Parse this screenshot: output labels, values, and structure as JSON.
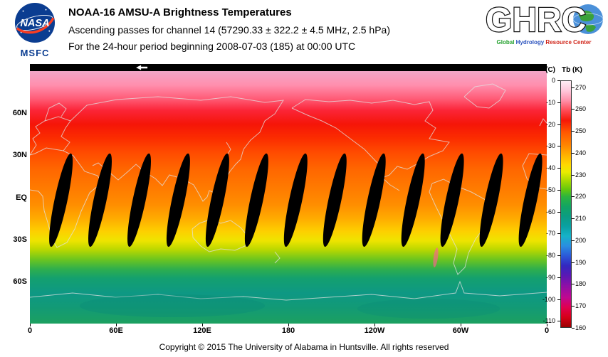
{
  "header": {
    "title": "NOAA-16 AMSU-A Brightness Temperatures",
    "subtitle_channel": "Ascending passes for channel 14 (57290.33 ± 322.2 ± 4.5 MHz, 2.5 hPa)",
    "subtitle_period": "For the 24-hour period beginning 2008-07-03 (185) at 00:00 UTC",
    "nasa_wordmark": "NASA",
    "nasa_center": "MSFC",
    "ghrc_acronym": "GHRC",
    "ghrc_tagline": [
      {
        "text": "Global",
        "color": "#22a02c"
      },
      {
        "text": "Hydrology",
        "color": "#2a52be"
      },
      {
        "text": "Resource",
        "color": "#d02418"
      },
      {
        "text": "Center",
        "color": "#d02418"
      }
    ]
  },
  "footer": {
    "copyright": "Copyright © 2015 The University of Alabama in Huntsville. All rights reserved"
  },
  "chart_data": {
    "type": "heatmap",
    "title": "NOAA-16 AMSU-A Brightness Temperatures, ascending passes, channel 14 (2.5 hPa)",
    "date": "2008-07-03 (day 185), 24-hour period beginning 00:00 UTC",
    "projection": "equirectangular world map, 0E at left edge, 180 at center, 0 (360) at right edge",
    "lon_ticks": [
      {
        "label": "0",
        "lon": 0
      },
      {
        "label": "60E",
        "lon": 60
      },
      {
        "label": "120E",
        "lon": 120
      },
      {
        "label": "180",
        "lon": 180
      },
      {
        "label": "120W",
        "lon": 240
      },
      {
        "label": "60W",
        "lon": 300
      },
      {
        "label": "0",
        "lon": 360
      }
    ],
    "lat_ticks": [
      {
        "label": "60N",
        "lat": 60
      },
      {
        "label": "30N",
        "lat": 30
      },
      {
        "label": "EQ",
        "lat": 0
      },
      {
        "label": "30S",
        "lat": -30
      },
      {
        "label": "60S",
        "lat": -60
      }
    ],
    "colorbar": {
      "unit_left": "(C)",
      "unit_right": "Tb  (K)",
      "celsius_ticks": [
        0,
        -10,
        -20,
        -30,
        -40,
        -50,
        -60,
        -70,
        -80,
        -90,
        -100,
        -110
      ],
      "kelvin_ticks": [
        270,
        260,
        250,
        240,
        230,
        220,
        210,
        200,
        190,
        180,
        170,
        160
      ],
      "kelvin_range": [
        273.15,
        160
      ],
      "stops": [
        {
          "f": 0.0,
          "c": "#ffeef5"
        },
        {
          "f": 0.04,
          "c": "#ffc6da"
        },
        {
          "f": 0.08,
          "c": "#ff8fa8"
        },
        {
          "f": 0.12,
          "c": "#ff4a55"
        },
        {
          "f": 0.16,
          "c": "#f51808"
        },
        {
          "f": 0.21,
          "c": "#ff5a00"
        },
        {
          "f": 0.26,
          "c": "#ff8400"
        },
        {
          "f": 0.3,
          "c": "#ffb000"
        },
        {
          "f": 0.34,
          "c": "#ffd800"
        },
        {
          "f": 0.37,
          "c": "#eaec00"
        },
        {
          "f": 0.4,
          "c": "#b2dc00"
        },
        {
          "f": 0.44,
          "c": "#66c80c"
        },
        {
          "f": 0.47,
          "c": "#2cb43e"
        },
        {
          "f": 0.51,
          "c": "#12a463"
        },
        {
          "f": 0.55,
          "c": "#0c9c82"
        },
        {
          "f": 0.59,
          "c": "#0aa0a2"
        },
        {
          "f": 0.63,
          "c": "#16b2c8"
        },
        {
          "f": 0.67,
          "c": "#2a8ee0"
        },
        {
          "f": 0.71,
          "c": "#2b59d8"
        },
        {
          "f": 0.75,
          "c": "#3328c0"
        },
        {
          "f": 0.79,
          "c": "#5a18b4"
        },
        {
          "f": 0.83,
          "c": "#8c10a8"
        },
        {
          "f": 0.88,
          "c": "#c00890"
        },
        {
          "f": 0.92,
          "c": "#e0004f"
        },
        {
          "f": 0.96,
          "c": "#d60018"
        },
        {
          "f": 1.0,
          "c": "#9c0000"
        }
      ]
    },
    "zonal_mean_tb_k": {
      "lats": [
        90,
        75,
        60,
        45,
        30,
        15,
        0,
        -15,
        -25,
        -32,
        -40,
        -50,
        -60,
        -75,
        -90
      ],
      "tb_k": [
        266,
        261,
        256,
        253,
        251,
        248,
        247,
        243,
        238,
        234,
        229,
        222,
        218,
        216,
        218
      ]
    },
    "map_gradient": [
      {
        "f": 0.0,
        "c": "#f2a6c8"
      },
      {
        "f": 0.055,
        "c": "#ff8fae"
      },
      {
        "f": 0.11,
        "c": "#ff5b76"
      },
      {
        "f": 0.155,
        "c": "#fb2538"
      },
      {
        "f": 0.21,
        "c": "#f51508"
      },
      {
        "f": 0.265,
        "c": "#fb2c00"
      },
      {
        "f": 0.32,
        "c": "#ff4a00"
      },
      {
        "f": 0.39,
        "c": "#ff6700"
      },
      {
        "f": 0.455,
        "c": "#ff7800"
      },
      {
        "f": 0.53,
        "c": "#ff8e00"
      },
      {
        "f": 0.585,
        "c": "#ffac00"
      },
      {
        "f": 0.635,
        "c": "#fdd000"
      },
      {
        "f": 0.672,
        "c": "#eee400"
      },
      {
        "f": 0.706,
        "c": "#bcd800"
      },
      {
        "f": 0.745,
        "c": "#6ec61e"
      },
      {
        "f": 0.785,
        "c": "#2eae4e"
      },
      {
        "f": 0.82,
        "c": "#14a06e"
      },
      {
        "f": 0.88,
        "c": "#0e9884"
      },
      {
        "f": 0.935,
        "c": "#129a76"
      },
      {
        "f": 1.0,
        "c": "#1ca060"
      }
    ],
    "swath_gaps": {
      "count": 13,
      "shape": "narrow black lens-shaped no-data gaps between ascending swaths",
      "lat_extent": [
        32,
        -36
      ],
      "tilt_deg": 12,
      "first_lon_frac": 0.06,
      "lon_frac_step": 0.0757
    },
    "pass_start_marker": {
      "symbol": "left-arrow",
      "lon_frac": 0.215
    }
  }
}
